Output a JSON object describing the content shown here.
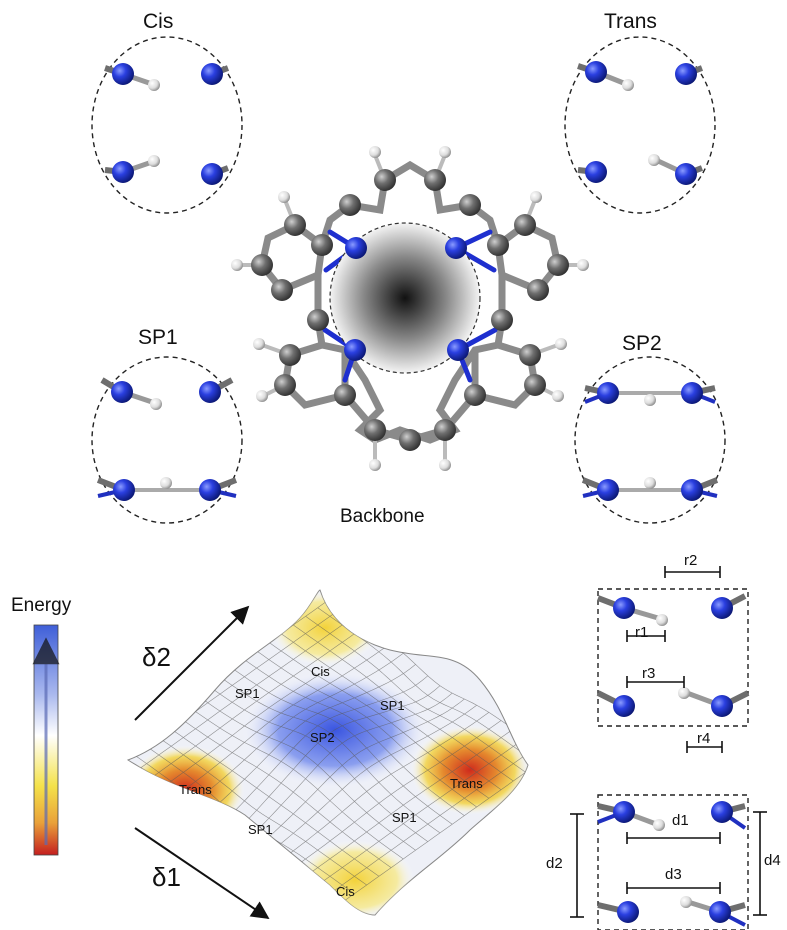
{
  "states": {
    "cis": "Cis",
    "trans": "Trans",
    "sp1": "SP1",
    "sp2": "SP2"
  },
  "backbone_label": "Backbone",
  "energy_label": "Energy",
  "axes": {
    "delta1": "δ1",
    "delta2": "δ2"
  },
  "surface_labels": {
    "cis_top": "Cis",
    "cis_bottom": "Cis",
    "trans_left": "Trans",
    "trans_right": "Trans",
    "sp1_top_left": "SP1",
    "sp1_top_right": "SP1",
    "sp1_bottom_left": "SP1",
    "sp1_bottom_right": "SP1",
    "sp2_center": "SP2"
  },
  "distances": {
    "r1": "r1",
    "r2": "r2",
    "r3": "r3",
    "r4": "r4",
    "d1": "d1",
    "d2": "d2",
    "d3": "d3",
    "d4": "d4"
  },
  "colors": {
    "nitrogen": "#1a2fd1",
    "hydrogen": "#e6e6e6",
    "carbon": "#6b6b6b",
    "energy_high": "#3a5ad8",
    "energy_mid": "#ffffff",
    "energy_low": "#c81e1e"
  }
}
